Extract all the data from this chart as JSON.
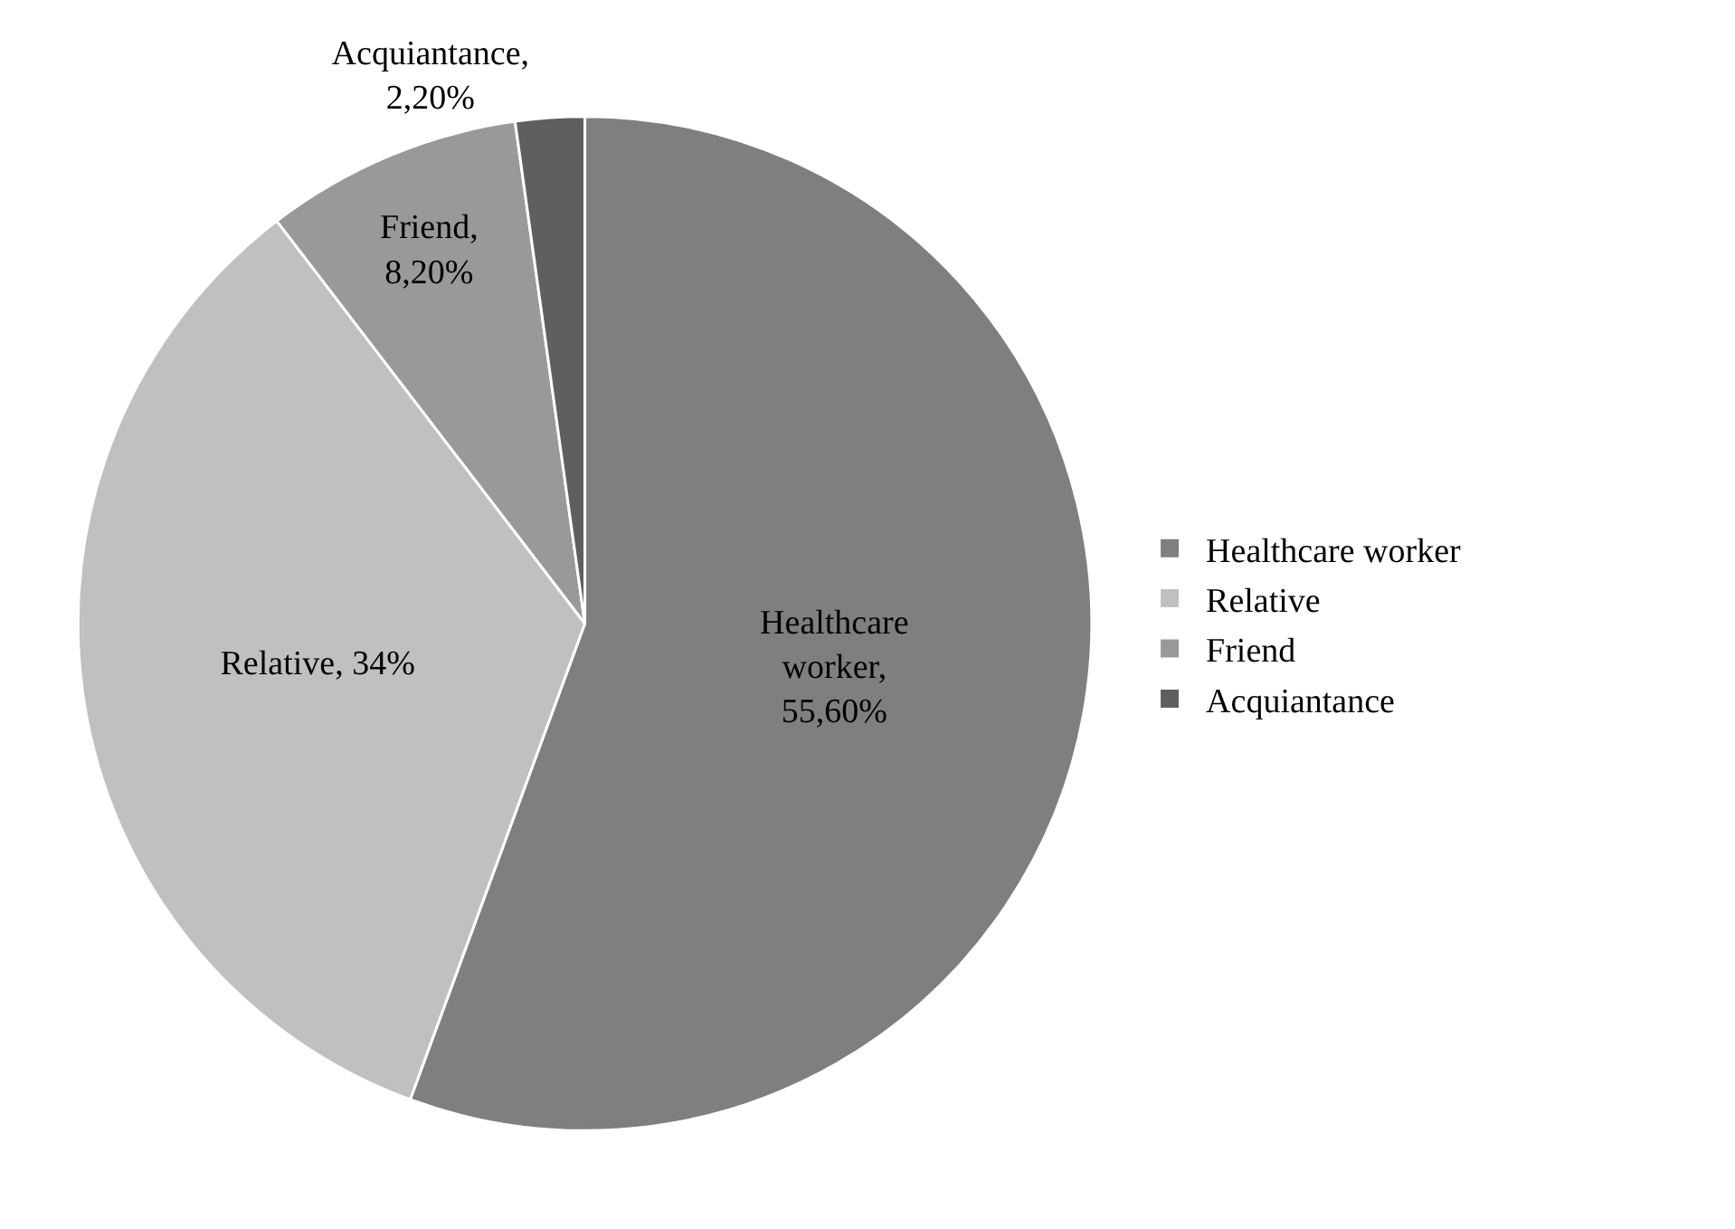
{
  "chart_data": {
    "type": "pie",
    "categories": [
      "Healthcare worker",
      "Relative",
      "Friend",
      "Acquiantance"
    ],
    "values": [
      55.6,
      34,
      8.2,
      2.2
    ],
    "colors": [
      "#7f7f7f",
      "#c0c0c0",
      "#999999",
      "#5f5f5f"
    ],
    "value_labels": [
      "Healthcare worker, 55,60%",
      "Relative, 34%",
      "Friend, 8,20%",
      "Acquiantance, 2,20%"
    ],
    "legend": "right"
  }
}
